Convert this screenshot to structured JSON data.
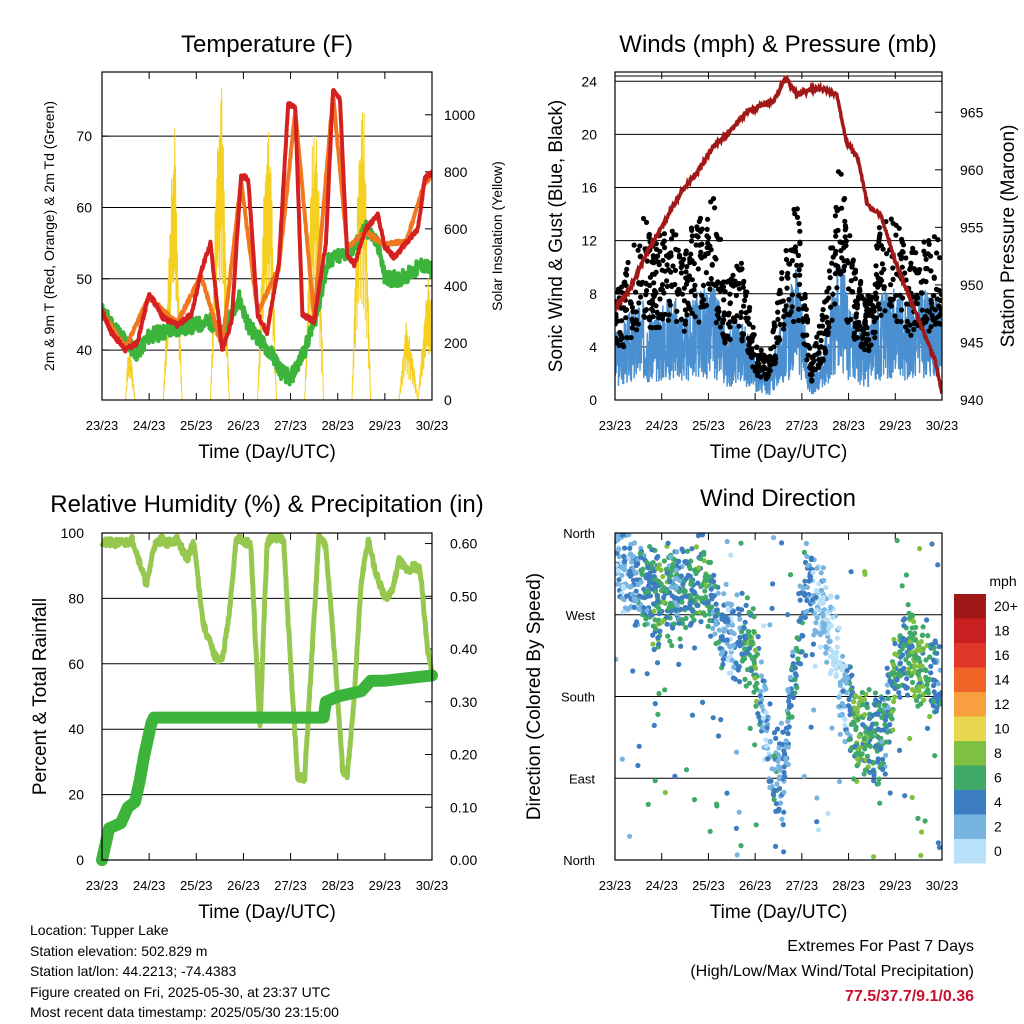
{
  "chart_data": [
    {
      "type": "line",
      "title": "Temperature (F)",
      "xlabel": "Time (Day/UTC)",
      "ylabel": "2m & 9m T (Red, Orange) & 2m Td (Green)",
      "y2label": "Solar Insolation (Yellow)",
      "x_ticks": [
        "23/23",
        "24/23",
        "25/23",
        "26/23",
        "27/23",
        "28/23",
        "29/23",
        "30/23"
      ],
      "ylim": [
        33,
        79
      ],
      "y_ticks": [
        40,
        50,
        60,
        70
      ],
      "y2lim": [
        0,
        1150
      ],
      "y2_ticks": [
        0,
        200,
        400,
        600,
        800,
        1000
      ],
      "grid": "horizontal",
      "colors": {
        "t2m": "#d42020",
        "t9m": "#f07820",
        "td": "#3cb43c",
        "solar": "#f5d020"
      },
      "series": [
        {
          "key": "t2m",
          "x": [
            0,
            0.2,
            0.5,
            0.75,
            1.0,
            1.3,
            1.6,
            1.9,
            2.1,
            2.3,
            2.55,
            2.75,
            2.95,
            3.1,
            3.3,
            3.5,
            3.75,
            3.95,
            4.1,
            4.25,
            4.5,
            4.75,
            4.9,
            5.05,
            5.2,
            5.35,
            5.6,
            5.85,
            6.0,
            6.2,
            6.45,
            6.7,
            6.85,
            7.0
          ],
          "values": [
            45.5,
            42.5,
            40,
            41,
            48,
            44.5,
            43.5,
            45,
            51,
            55,
            40,
            44,
            64.5,
            64,
            45,
            42.5,
            52,
            74.5,
            74,
            45,
            44,
            55,
            76.5,
            75,
            53.5,
            52,
            57,
            59,
            54.5,
            53,
            55,
            57,
            64,
            65
          ]
        },
        {
          "key": "t9m",
          "x": [
            0,
            0.5,
            1.0,
            1.6,
            2.1,
            2.55,
            2.95,
            3.3,
            3.75,
            4.1,
            4.5,
            4.9,
            5.2,
            5.6,
            6.0,
            6.45,
            6.85,
            7.0
          ],
          "values": [
            45.3,
            40.3,
            47.5,
            43.8,
            50.5,
            40.5,
            63.8,
            45.3,
            51.5,
            73.5,
            44.5,
            75.8,
            54.5,
            56.5,
            54.8,
            55.2,
            63.5,
            64.5
          ]
        },
        {
          "key": "td",
          "x": [
            0,
            0.4,
            0.75,
            1.0,
            1.3,
            1.6,
            2.0,
            2.3,
            2.55,
            2.9,
            3.1,
            3.4,
            3.65,
            3.8,
            4.0,
            4.3,
            4.55,
            4.8,
            5.0,
            5.3,
            5.6,
            5.85,
            6.0,
            6.3,
            6.6,
            6.8,
            7.0
          ],
          "values": [
            45.5,
            42,
            39.5,
            42,
            42.5,
            43,
            43.5,
            44,
            42,
            47.5,
            43.5,
            41,
            39,
            37,
            36,
            40,
            45,
            52.5,
            53,
            54,
            57,
            55,
            50,
            50,
            51,
            52,
            51
          ]
        },
        {
          "key": "solar",
          "x": [
            0,
            0.5,
            0.55,
            0.6,
            0.7,
            1.3,
            1.5,
            1.55,
            1.6,
            1.7,
            2.3,
            2.45,
            2.55,
            2.6,
            2.7,
            3.3,
            3.45,
            3.55,
            3.6,
            3.7,
            4.3,
            4.45,
            4.55,
            4.6,
            4.7,
            5.3,
            5.45,
            5.55,
            5.6,
            5.7,
            6.3,
            6.45,
            6.55,
            6.6,
            6.7,
            6.9,
            7.0
          ],
          "values": [
            0,
            0,
            180,
            220,
            0,
            0,
            900,
            1050,
            600,
            0,
            0,
            1000,
            1150,
            700,
            0,
            0,
            850,
            1000,
            800,
            0,
            0,
            900,
            1050,
            750,
            0,
            0,
            950,
            1080,
            800,
            0,
            0,
            300,
            200,
            150,
            0,
            450,
            350
          ]
        }
      ]
    },
    {
      "type": "scatter",
      "title": "Winds (mph) & Pressure (mb)",
      "xlabel": "Time (Day/UTC)",
      "ylabel": "Sonic Wind & Gust (Blue, Black)",
      "y2label": "Station Pressure (Maroon)",
      "x_ticks": [
        "23/23",
        "24/23",
        "25/23",
        "26/23",
        "27/23",
        "28/23",
        "29/23",
        "30/23"
      ],
      "ylim": [
        0,
        24.7
      ],
      "y_ticks": [
        0,
        4,
        8,
        12,
        16,
        20,
        24
      ],
      "y2lim": [
        940,
        968.5
      ],
      "y2_ticks": [
        940,
        945,
        950,
        955,
        960,
        965
      ],
      "grid": "horizontal",
      "colors": {
        "wind": "#4a90d0",
        "gust": "#000000",
        "pressure": "#a01818"
      },
      "series": [
        {
          "key": "wind",
          "x": [
            0,
            0.3,
            0.6,
            0.9,
            1.2,
            1.5,
            1.8,
            2.1,
            2.4,
            2.7,
            3.0,
            3.3,
            3.6,
            3.9,
            4.2,
            4.5,
            4.8,
            5.1,
            5.4,
            5.7,
            6.0,
            6.3,
            6.6,
            6.9,
            7.0
          ],
          "values": [
            3,
            4,
            4.5,
            4,
            5,
            4,
            5,
            5.5,
            3,
            4,
            2,
            1,
            4,
            6,
            1,
            3,
            6.5,
            4,
            3,
            5,
            5,
            4.5,
            5,
            4.5,
            4
          ]
        },
        {
          "key": "gust",
          "x": [
            0,
            0.3,
            0.6,
            0.9,
            1.2,
            1.5,
            1.8,
            2.1,
            2.4,
            2.7,
            3.0,
            3.3,
            3.6,
            3.9,
            4.2,
            4.5,
            4.8,
            5.1,
            5.4,
            5.7,
            6.0,
            6.3,
            6.6,
            6.9,
            7.0
          ],
          "values": [
            5,
            7,
            9,
            8,
            8.5,
            8,
            9,
            10,
            6,
            7,
            3,
            2,
            7,
            10,
            2,
            5,
            12,
            7,
            5,
            9,
            9,
            7.5,
            8,
            8,
            7
          ]
        },
        {
          "key": "pressure",
          "x": [
            0,
            0.3,
            0.7,
            1.0,
            1.4,
            1.8,
            2.1,
            2.5,
            2.8,
            3.1,
            3.4,
            3.65,
            3.9,
            4.2,
            4.5,
            4.75,
            4.95,
            5.2,
            5.4,
            5.7,
            6.0,
            6.3,
            6.6,
            6.85,
            7.0
          ],
          "values": [
            948,
            949.5,
            953,
            955,
            958,
            960,
            962,
            963.5,
            965,
            965.5,
            966,
            968,
            966.5,
            967,
            967,
            966.5,
            962.5,
            961,
            957,
            956,
            952,
            949,
            946,
            943.5,
            940.5
          ]
        }
      ]
    },
    {
      "type": "line",
      "title": "Relative Humidity (%) & Precipitation (in)",
      "xlabel": "Time (Day/UTC)",
      "ylabel": "Percent & Total Rainfall",
      "x_ticks": [
        "23/23",
        "24/23",
        "25/23",
        "26/23",
        "27/23",
        "28/23",
        "29/23",
        "30/23"
      ],
      "ylim": [
        0,
        100
      ],
      "y_ticks": [
        0,
        20,
        40,
        60,
        80,
        100
      ],
      "y2lim": [
        0,
        0.62
      ],
      "y2_ticks": [
        "0.00",
        "0.10",
        "0.20",
        "0.30",
        "0.40",
        "0.50",
        "0.60"
      ],
      "grid": "horizontal",
      "colors": {
        "rh": "#96c850",
        "precip": "#3cb43c"
      },
      "series": [
        {
          "key": "rh",
          "x": [
            0,
            0.5,
            0.65,
            0.8,
            0.95,
            1.1,
            1.25,
            1.4,
            1.6,
            1.8,
            1.95,
            2.15,
            2.4,
            2.55,
            2.7,
            2.85,
            3.0,
            3.15,
            3.35,
            3.5,
            3.65,
            3.85,
            4.0,
            4.15,
            4.3,
            4.45,
            4.6,
            4.75,
            4.95,
            5.1,
            5.2,
            5.35,
            5.5,
            5.65,
            5.8,
            6.0,
            6.15,
            6.3,
            6.5,
            6.6,
            6.75,
            6.9,
            7.0
          ],
          "values": [
            97,
            97,
            98,
            91,
            84,
            96,
            98,
            97,
            98,
            92,
            97,
            72,
            62,
            61,
            75,
            99,
            97,
            97,
            40,
            97,
            99,
            98,
            60,
            25,
            25,
            62,
            99,
            96,
            60,
            28,
            25,
            50,
            85,
            98,
            88,
            80,
            82,
            92,
            88,
            90,
            89,
            65,
            57
          ]
        },
        {
          "key": "precip",
          "x": [
            0,
            0.05,
            0.15,
            0.4,
            0.55,
            0.7,
            0.8,
            0.9,
            0.95,
            1.0,
            1.05,
            1.1,
            1.5,
            2.0,
            3.0,
            4.0,
            4.6,
            4.7,
            4.75,
            5.0,
            5.5,
            5.7,
            6.0,
            7.0
          ],
          "values": [
            0,
            0.02,
            0.06,
            0.07,
            0.1,
            0.11,
            0.15,
            0.2,
            0.22,
            0.24,
            0.26,
            0.27,
            0.27,
            0.27,
            0.27,
            0.27,
            0.27,
            0.27,
            0.3,
            0.31,
            0.32,
            0.34,
            0.34,
            0.35
          ]
        }
      ]
    },
    {
      "type": "scatter",
      "title": "Wind Direction",
      "xlabel": "Time (Day/UTC)",
      "ylabel": "Direction (Colored By Speed)",
      "x_ticks": [
        "23/23",
        "24/23",
        "25/23",
        "26/23",
        "27/23",
        "28/23",
        "29/23",
        "30/23"
      ],
      "y_ticks": [
        "North",
        "East",
        "South",
        "West",
        "North"
      ],
      "ylim": [
        0,
        360
      ],
      "grid": "horizontal",
      "legend": {
        "title": "mph",
        "labels": [
          "20+",
          "18",
          "16",
          "14",
          "12",
          "10",
          "8",
          "6",
          "4",
          "2",
          "0"
        ],
        "position": "right"
      },
      "colorscale": [
        "#a01818",
        "#c82020",
        "#e03828",
        "#f06428",
        "#f8a040",
        "#e8d850",
        "#80c040",
        "#40a868",
        "#3c7cc0",
        "#78b4e0",
        "#b8e0f8"
      ],
      "series": [
        {
          "key": "direction",
          "x": [
            0,
            0.2,
            0.4,
            0.6,
            0.8,
            1.0,
            1.3,
            1.6,
            1.9,
            2.1,
            2.3,
            2.5,
            2.75,
            3.0,
            3.2,
            3.4,
            3.6,
            3.85,
            4.1,
            4.3,
            4.5,
            4.7,
            4.9,
            5.15,
            5.4,
            5.6,
            5.8,
            6.0,
            6.2,
            6.4,
            6.6,
            6.8,
            7.0
          ],
          "values": [
            340,
            320,
            310,
            300,
            290,
            285,
            295,
            300,
            310,
            280,
            260,
            250,
            240,
            230,
            150,
            90,
            100,
            220,
            310,
            290,
            270,
            240,
            180,
            140,
            140,
            130,
            150,
            210,
            230,
            220,
            215,
            205,
            195
          ],
          "speeds": [
            2,
            2,
            3,
            4,
            5,
            6,
            4,
            5,
            6,
            4,
            3,
            2,
            5,
            7,
            1,
            4,
            3,
            5,
            4,
            2,
            1,
            0,
            2,
            7,
            6,
            5,
            4,
            6,
            5,
            7,
            6,
            5,
            4
          ]
        }
      ]
    }
  ],
  "footer": {
    "location": "Location: Tupper Lake",
    "elevation": "Station elevation: 502.829 m",
    "latlon": "Station lat/lon: 44.2213; -74.4383",
    "created": "Figure created on Fri, 2025-05-30, at 23:37 UTC",
    "recent": "Most recent data timestamp: 2025/05/30 23:15:00"
  },
  "extremes": {
    "heading": "Extremes For Past 7 Days",
    "subheading": "(High/Low/Max Wind/Total Precipitation)",
    "values": "77.5/37.7/9.1/0.36"
  }
}
